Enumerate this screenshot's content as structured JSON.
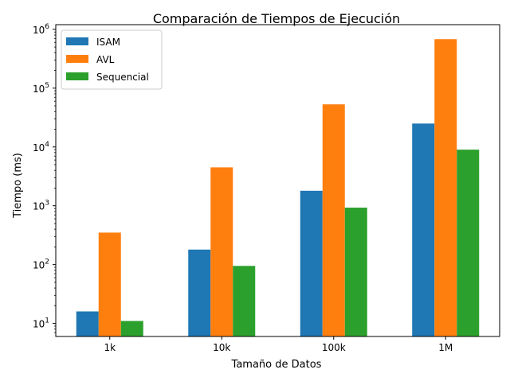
{
  "chart_data": {
    "type": "bar",
    "title": "Comparación de Tiempos de Ejecución",
    "xlabel": "Tamaño de Datos",
    "ylabel": "Tiempo (ms)",
    "yscale": "log",
    "ylim": [
      6,
      1200000
    ],
    "categories": [
      "1k",
      "10k",
      "100k",
      "1M"
    ],
    "series": [
      {
        "name": "ISAM",
        "color": "#1f77b4",
        "values": [
          16,
          180,
          1800,
          25000
        ]
      },
      {
        "name": "AVL",
        "color": "#ff7f0e",
        "values": [
          350,
          4500,
          53000,
          680000
        ]
      },
      {
        "name": "Sequencial",
        "color": "#2ca02c",
        "values": [
          11,
          95,
          930,
          9000
        ]
      }
    ],
    "y_ticks": [
      {
        "value": 10,
        "base": "10",
        "exp": "1"
      },
      {
        "value": 100,
        "base": "10",
        "exp": "2"
      },
      {
        "value": 1000,
        "base": "10",
        "exp": "3"
      },
      {
        "value": 10000,
        "base": "10",
        "exp": "4"
      },
      {
        "value": 100000,
        "base": "10",
        "exp": "5"
      },
      {
        "value": 1000000,
        "base": "10",
        "exp": "6"
      }
    ],
    "grid": false,
    "legend": "top-left"
  }
}
